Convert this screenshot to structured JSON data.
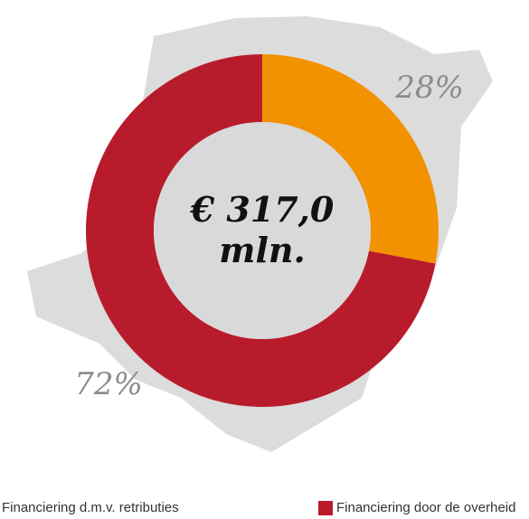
{
  "chart_data": {
    "type": "donut",
    "categories": [
      "Financiering d.m.v. retributies",
      "Financiering door de overheid"
    ],
    "values": [
      28,
      72
    ],
    "value_labels": [
      "28%",
      "72%"
    ],
    "colors": [
      "#f39200",
      "#b81c2c"
    ],
    "center_label": [
      "€ 317,0",
      "mln."
    ]
  }
}
